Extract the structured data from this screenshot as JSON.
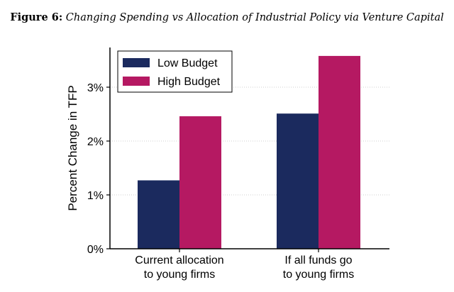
{
  "figure": {
    "label": "Figure 6:",
    "title": "Changing Spending vs Allocation of Industrial Policy via Venture Capital"
  },
  "colors": {
    "low_budget": "#1b2a5e",
    "high_budget": "#b51962",
    "gridline": "#cfcfcf",
    "axis": "#000000"
  },
  "chart_data": {
    "type": "bar",
    "categories": [
      [
        "Current allocation",
        "to young firms"
      ],
      [
        "If all funds go",
        "to young firms"
      ]
    ],
    "series": [
      {
        "name": "Low Budget",
        "values": [
          1.27,
          2.51
        ]
      },
      {
        "name": "High Budget",
        "values": [
          2.46,
          3.58
        ]
      }
    ],
    "ylabel": "Percent Change in TFP",
    "ylim": [
      0,
      3.7
    ],
    "yticks": [
      0,
      1,
      2,
      3
    ],
    "ytick_labels": [
      "0%",
      "1%",
      "2%",
      "3%"
    ],
    "grid": "horizontal dotted",
    "legend_position": "top-left"
  }
}
